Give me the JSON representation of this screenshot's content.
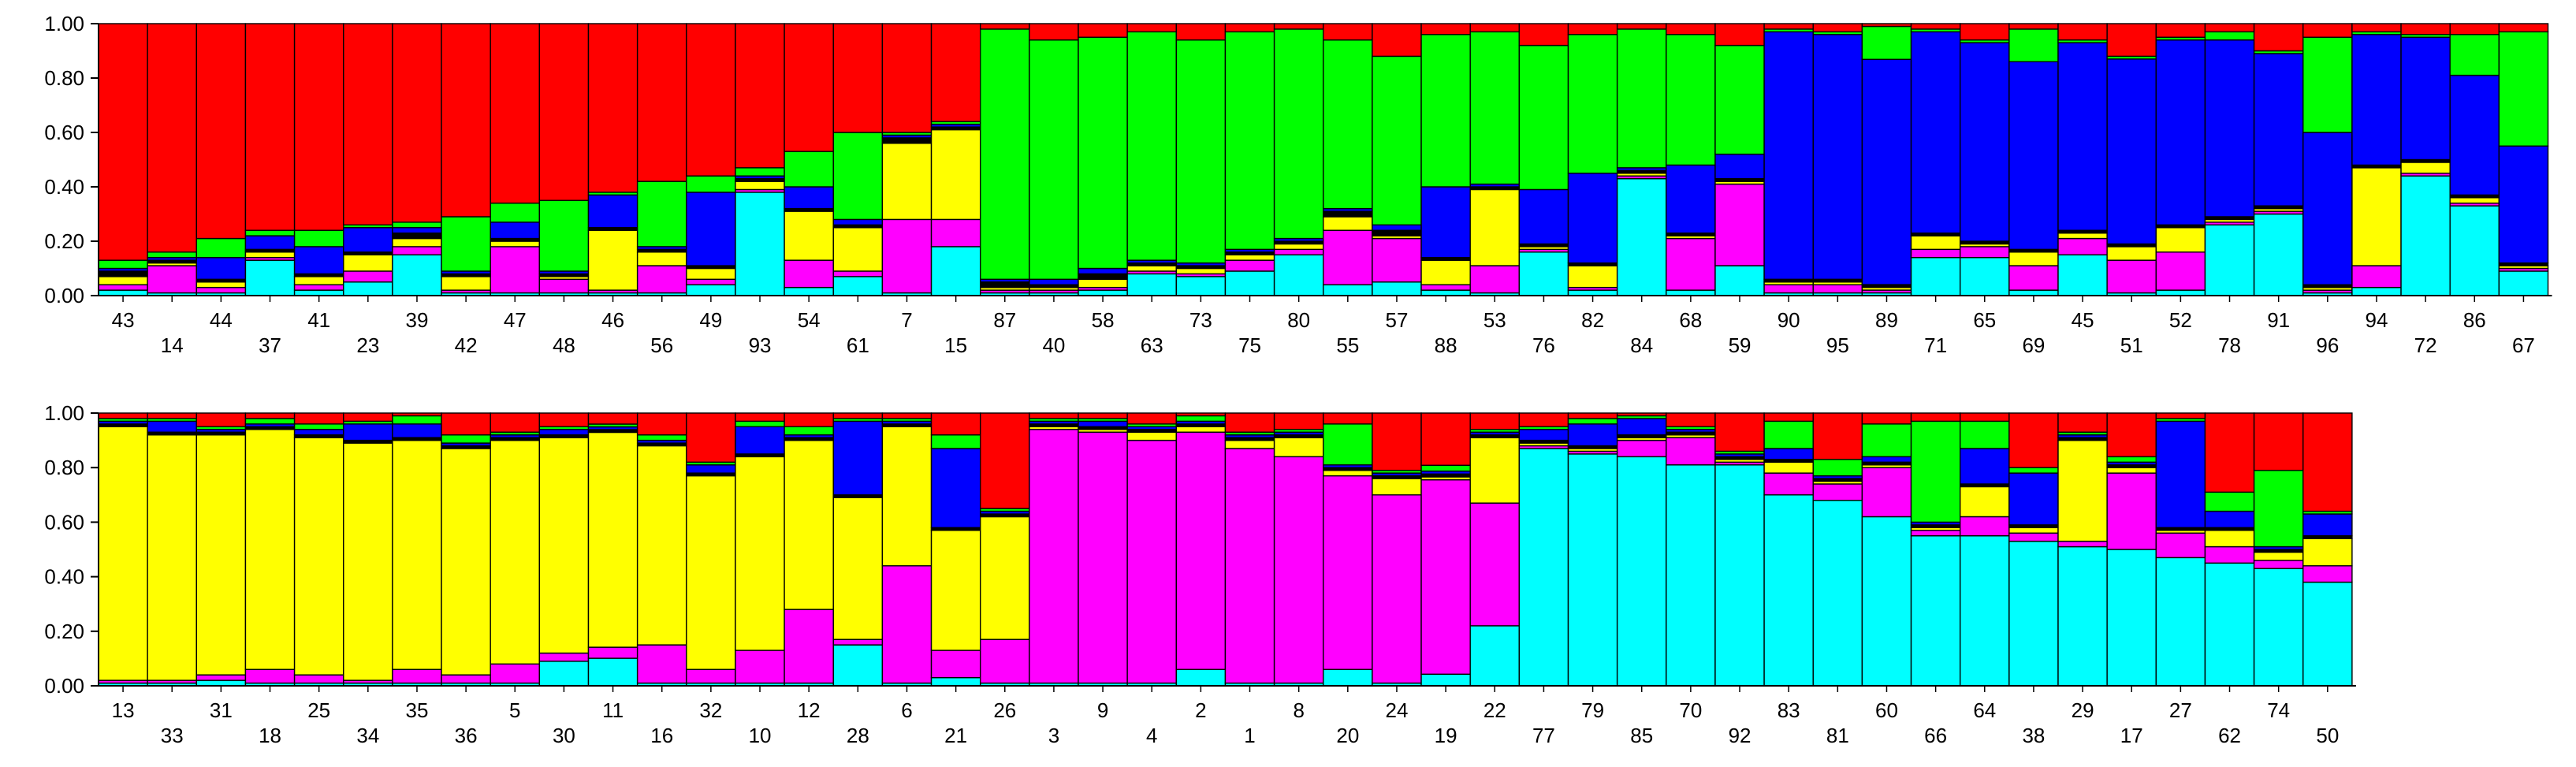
{
  "colors": {
    "cyan": "#00ffff",
    "magenta": "#ff00ff",
    "yellow": "#ffff00",
    "black": "#000000",
    "blue": "#0000ff",
    "green": "#00ff00",
    "red": "#ff0000"
  },
  "chart_data": [
    {
      "type": "bar",
      "stacked": true,
      "ylim": [
        0,
        1
      ],
      "yticks": [
        "0.00",
        "0.20",
        "0.40",
        "0.60",
        "0.80",
        "1.00"
      ],
      "categories": [
        "43",
        "14",
        "44",
        "37",
        "41",
        "23",
        "39",
        "42",
        "47",
        "48",
        "46",
        "56",
        "49",
        "93",
        "54",
        "61",
        "7",
        "15",
        "87",
        "40",
        "58",
        "63",
        "73",
        "75",
        "80",
        "55",
        "57",
        "88",
        "53",
        "76",
        "82",
        "84",
        "68",
        "59",
        "90",
        "95",
        "89",
        "71",
        "65",
        "69",
        "45",
        "51",
        "52",
        "78",
        "91",
        "96",
        "94",
        "72",
        "86",
        "67"
      ],
      "series": [
        {
          "color": "cyan",
          "values": [
            0.02,
            0.01,
            0.01,
            0.13,
            0.02,
            0.05,
            0.15,
            0.01,
            0.01,
            0.01,
            0.01,
            0.01,
            0.04,
            0.38,
            0.03,
            0.07,
            0.01,
            0.18,
            0.01,
            0.01,
            0.02,
            0.08,
            0.07,
            0.09,
            0.15,
            0.04,
            0.05,
            0.02,
            0.01,
            0.16,
            0.02,
            0.43,
            0.02,
            0.11,
            0.01,
            0.01,
            0.01,
            0.14,
            0.14,
            0.02,
            0.15,
            0.01,
            0.02,
            0.26,
            0.3,
            0.01,
            0.03,
            0.44,
            0.33,
            0.09
          ]
        },
        {
          "color": "magenta",
          "values": [
            0.02,
            0.1,
            0.02,
            0.01,
            0.02,
            0.04,
            0.03,
            0.01,
            0.17,
            0.05,
            0.01,
            0.1,
            0.02,
            0.01,
            0.1,
            0.02,
            0.27,
            0.1,
            0.01,
            0.01,
            0.01,
            0.01,
            0.01,
            0.04,
            0.02,
            0.2,
            0.16,
            0.02,
            0.1,
            0.01,
            0.01,
            0.01,
            0.19,
            0.3,
            0.03,
            0.03,
            0.01,
            0.03,
            0.04,
            0.09,
            0.06,
            0.12,
            0.14,
            0.01,
            0.01,
            0.01,
            0.08,
            0.01,
            0.01,
            0.01
          ]
        },
        {
          "color": "yellow",
          "values": [
            0.03,
            0.01,
            0.02,
            0.02,
            0.03,
            0.06,
            0.03,
            0.05,
            0.02,
            0.01,
            0.22,
            0.05,
            0.04,
            0.03,
            0.18,
            0.16,
            0.28,
            0.33,
            0.01,
            0.01,
            0.03,
            0.02,
            0.02,
            0.02,
            0.02,
            0.05,
            0.01,
            0.09,
            0.28,
            0.01,
            0.08,
            0.01,
            0.01,
            0.01,
            0.01,
            0.01,
            0.01,
            0.05,
            0.01,
            0.05,
            0.02,
            0.05,
            0.09,
            0.01,
            0.01,
            0.01,
            0.36,
            0.04,
            0.02,
            0.01
          ]
        },
        {
          "color": "black",
          "values": [
            0.02,
            0.01,
            0.01,
            0.01,
            0.01,
            0.01,
            0.02,
            0.01,
            0.01,
            0.01,
            0.01,
            0.01,
            0.01,
            0.01,
            0.01,
            0.01,
            0.02,
            0.01,
            0.02,
            0.01,
            0.02,
            0.01,
            0.01,
            0.01,
            0.01,
            0.02,
            0.02,
            0.01,
            0.01,
            0.01,
            0.01,
            0.01,
            0.01,
            0.01,
            0.01,
            0.01,
            0.01,
            0.01,
            0.01,
            0.01,
            0.01,
            0.01,
            0.01,
            0.01,
            0.01,
            0.01,
            0.01,
            0.01,
            0.01,
            0.01
          ]
        },
        {
          "color": "blue",
          "values": [
            0.01,
            0.01,
            0.08,
            0.05,
            0.1,
            0.09,
            0.02,
            0.01,
            0.06,
            0.01,
            0.12,
            0.01,
            0.27,
            0.01,
            0.08,
            0.02,
            0.01,
            0.01,
            0.01,
            0.02,
            0.02,
            0.01,
            0.01,
            0.01,
            0.01,
            0.01,
            0.02,
            0.26,
            0.01,
            0.2,
            0.33,
            0.01,
            0.25,
            0.09,
            0.91,
            0.9,
            0.82,
            0.74,
            0.73,
            0.69,
            0.69,
            0.68,
            0.68,
            0.65,
            0.56,
            0.56,
            0.48,
            0.45,
            0.44,
            0.43
          ]
        },
        {
          "color": "green",
          "values": [
            0.03,
            0.02,
            0.07,
            0.02,
            0.06,
            0.01,
            0.02,
            0.2,
            0.07,
            0.26,
            0.01,
            0.24,
            0.06,
            0.03,
            0.13,
            0.32,
            0.01,
            0.01,
            0.92,
            0.88,
            0.85,
            0.84,
            0.82,
            0.8,
            0.77,
            0.62,
            0.62,
            0.56,
            0.56,
            0.53,
            0.51,
            0.51,
            0.48,
            0.4,
            0.01,
            0.01,
            0.12,
            0.01,
            0.01,
            0.12,
            0.01,
            0.01,
            0.01,
            0.03,
            0.01,
            0.35,
            0.01,
            0.01,
            0.15,
            0.42
          ]
        },
        {
          "color": "red",
          "values": [
            0.87,
            0.84,
            0.79,
            0.76,
            0.76,
            0.74,
            0.73,
            0.71,
            0.66,
            0.65,
            0.62,
            0.58,
            0.56,
            0.53,
            0.47,
            0.4,
            0.4,
            0.36,
            0.02,
            0.06,
            0.05,
            0.03,
            0.06,
            0.03,
            0.02,
            0.06,
            0.12,
            0.04,
            0.03,
            0.08,
            0.04,
            0.02,
            0.04,
            0.08,
            0.02,
            0.03,
            0.01,
            0.02,
            0.06,
            0.02,
            0.06,
            0.12,
            0.05,
            0.03,
            0.1,
            0.05,
            0.03,
            0.04,
            0.04,
            0.03
          ]
        }
      ]
    },
    {
      "type": "bar",
      "stacked": true,
      "ylim": [
        0,
        1
      ],
      "yticks": [
        "0.00",
        "0.20",
        "0.40",
        "0.60",
        "0.80",
        "1.00"
      ],
      "categories": [
        "13",
        "33",
        "31",
        "18",
        "25",
        "34",
        "35",
        "36",
        "5",
        "30",
        "11",
        "16",
        "32",
        "10",
        "12",
        "28",
        "6",
        "21",
        "26",
        "3",
        "9",
        "4",
        "2",
        "1",
        "8",
        "20",
        "24",
        "19",
        "22",
        "77",
        "79",
        "85",
        "70",
        "92",
        "83",
        "81",
        "60",
        "66",
        "64",
        "38",
        "29",
        "17",
        "27",
        "62",
        "74",
        "50"
      ],
      "series": [
        {
          "color": "cyan",
          "values": [
            0.01,
            0.01,
            0.02,
            0.01,
            0.01,
            0.01,
            0.01,
            0.01,
            0.01,
            0.09,
            0.1,
            0.01,
            0.01,
            0.01,
            0.01,
            0.15,
            0.01,
            0.03,
            0.01,
            0.01,
            0.01,
            0.01,
            0.06,
            0.01,
            0.01,
            0.06,
            0.01,
            0.04,
            0.22,
            0.87,
            0.85,
            0.84,
            0.81,
            0.81,
            0.7,
            0.68,
            0.62,
            0.55,
            0.55,
            0.53,
            0.51,
            0.5,
            0.47,
            0.45,
            0.43,
            0.38
          ]
        },
        {
          "color": "magenta",
          "values": [
            0.01,
            0.01,
            0.02,
            0.05,
            0.03,
            0.01,
            0.05,
            0.03,
            0.07,
            0.03,
            0.04,
            0.14,
            0.05,
            0.12,
            0.27,
            0.02,
            0.43,
            0.1,
            0.16,
            0.93,
            0.92,
            0.89,
            0.87,
            0.86,
            0.83,
            0.71,
            0.69,
            0.67,
            0.45,
            0.01,
            0.01,
            0.06,
            0.1,
            0.01,
            0.08,
            0.06,
            0.18,
            0.02,
            0.07,
            0.03,
            0.02,
            0.28,
            0.09,
            0.06,
            0.03,
            0.06
          ]
        },
        {
          "color": "yellow",
          "values": [
            0.93,
            0.9,
            0.88,
            0.88,
            0.87,
            0.87,
            0.84,
            0.83,
            0.82,
            0.79,
            0.78,
            0.73,
            0.71,
            0.71,
            0.62,
            0.52,
            0.51,
            0.44,
            0.45,
            0.01,
            0.01,
            0.03,
            0.02,
            0.03,
            0.07,
            0.02,
            0.06,
            0.01,
            0.24,
            0.01,
            0.01,
            0.01,
            0.01,
            0.01,
            0.04,
            0.01,
            0.01,
            0.01,
            0.11,
            0.02,
            0.37,
            0.02,
            0.01,
            0.06,
            0.03,
            0.1
          ]
        },
        {
          "color": "black",
          "values": [
            0.01,
            0.01,
            0.01,
            0.01,
            0.01,
            0.01,
            0.01,
            0.01,
            0.01,
            0.01,
            0.01,
            0.01,
            0.01,
            0.01,
            0.01,
            0.01,
            0.01,
            0.01,
            0.01,
            0.01,
            0.01,
            0.01,
            0.01,
            0.01,
            0.01,
            0.01,
            0.01,
            0.01,
            0.01,
            0.01,
            0.01,
            0.01,
            0.01,
            0.01,
            0.01,
            0.01,
            0.01,
            0.01,
            0.01,
            0.01,
            0.01,
            0.01,
            0.01,
            0.01,
            0.01,
            0.01
          ]
        },
        {
          "color": "blue",
          "values": [
            0.01,
            0.04,
            0.01,
            0.01,
            0.02,
            0.06,
            0.05,
            0.01,
            0.01,
            0.02,
            0.01,
            0.01,
            0.03,
            0.1,
            0.01,
            0.27,
            0.01,
            0.29,
            0.01,
            0.01,
            0.02,
            0.01,
            0.01,
            0.01,
            0.01,
            0.01,
            0.01,
            0.01,
            0.01,
            0.04,
            0.08,
            0.06,
            0.01,
            0.01,
            0.04,
            0.01,
            0.02,
            0.01,
            0.13,
            0.19,
            0.01,
            0.01,
            0.39,
            0.06,
            0.01,
            0.08
          ]
        },
        {
          "color": "green",
          "values": [
            0.01,
            0.01,
            0.01,
            0.02,
            0.02,
            0.01,
            0.03,
            0.03,
            0.01,
            0.01,
            0.01,
            0.02,
            0.01,
            0.02,
            0.03,
            0.01,
            0.01,
            0.05,
            0.01,
            0.01,
            0.01,
            0.01,
            0.02,
            0.01,
            0.01,
            0.15,
            0.01,
            0.02,
            0.01,
            0.01,
            0.02,
            0.01,
            0.01,
            0.01,
            0.1,
            0.06,
            0.12,
            0.37,
            0.1,
            0.02,
            0.01,
            0.02,
            0.01,
            0.07,
            0.28,
            0.01
          ]
        },
        {
          "color": "red",
          "values": [
            0.02,
            0.02,
            0.05,
            0.02,
            0.04,
            0.03,
            0.01,
            0.08,
            0.07,
            0.05,
            0.04,
            0.08,
            0.18,
            0.03,
            0.05,
            0.02,
            0.02,
            0.08,
            0.35,
            0.02,
            0.02,
            0.04,
            0.01,
            0.07,
            0.06,
            0.04,
            0.21,
            0.18,
            0.06,
            0.05,
            0.02,
            0.01,
            0.05,
            0.14,
            0.03,
            0.17,
            0.04,
            0.03,
            0.03,
            0.2,
            0.07,
            0.16,
            0.02,
            0.29,
            0.21,
            0.36
          ]
        }
      ]
    }
  ]
}
